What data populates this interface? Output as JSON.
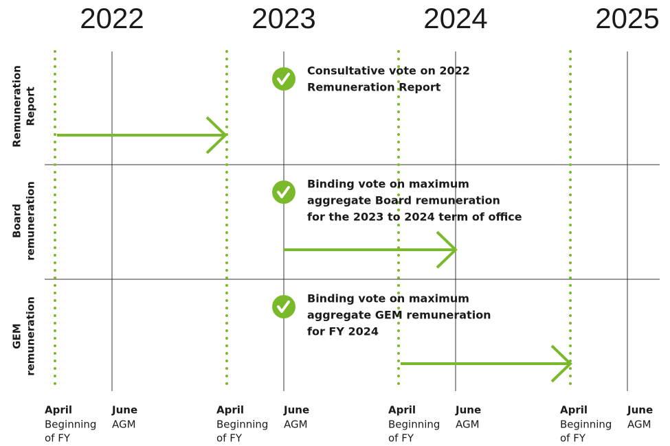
{
  "years": [
    "2022",
    "2023",
    "2024",
    "2025"
  ],
  "rows": [
    {
      "label": [
        "Remuneration",
        "Report"
      ],
      "vote": [
        "Consultative vote on 2022",
        "Remuneration Report"
      ]
    },
    {
      "label": [
        "Board",
        "remuneration"
      ],
      "vote": [
        "Binding vote on maximum",
        "aggregate Board remuneration",
        "for the 2023 to 2024 term of office"
      ]
    },
    {
      "label": [
        "GEM",
        "remuneration"
      ],
      "vote": [
        "Binding vote on maximum",
        "aggregate GEM remuneration",
        "for FY 2024"
      ]
    }
  ],
  "axis_labels": [
    {
      "title": "April",
      "lines": [
        "Beginning",
        "of FY"
      ]
    },
    {
      "title": "June",
      "lines": [
        "AGM"
      ]
    },
    {
      "title": "April",
      "lines": [
        "Beginning",
        "of FY"
      ]
    },
    {
      "title": "June",
      "lines": [
        "AGM"
      ]
    },
    {
      "title": "April",
      "lines": [
        "Beginning",
        "of FY"
      ]
    },
    {
      "title": "June",
      "lines": [
        "AGM"
      ]
    },
    {
      "title": "April",
      "lines": [
        "Beginning",
        "of FY"
      ]
    },
    {
      "title": "June",
      "lines": [
        "AGM"
      ]
    }
  ]
}
